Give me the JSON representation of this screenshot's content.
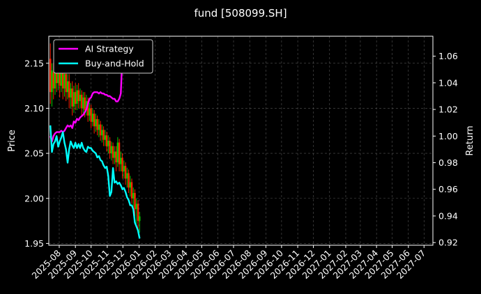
{
  "chart_data": {
    "type": "line",
    "title": "fund [508099.SH]",
    "xlabel": "",
    "ylabel": "Price",
    "y2label": "Return",
    "grid": true,
    "legend_placement": "top-left",
    "x_tick_labels": [
      "2025-08",
      "2025-09",
      "2025-10",
      "2025-11",
      "2025-12",
      "2026-01",
      "2026-02",
      "2026-03",
      "2026-04",
      "2026-05",
      "2026-06",
      "2026-07",
      "2026-08",
      "2026-09",
      "2026-10",
      "2026-11",
      "2026-12",
      "2027-01",
      "2027-02",
      "2027-03",
      "2027-04",
      "2027-05",
      "2027-06",
      "2027-07"
    ],
    "xlim": [
      "2025-07-12",
      "2027-07-18"
    ],
    "ylim": [
      1.948,
      2.18
    ],
    "y_ticks": [
      "1.95",
      "2.00",
      "2.05",
      "2.10",
      "2.15"
    ],
    "y2lim": [
      0.918,
      1.075
    ],
    "y2_ticks": [
      "0.92",
      "0.94",
      "0.96",
      "0.98",
      "1.00",
      "1.02",
      "1.04",
      "1.06"
    ],
    "candles": [
      {
        "date": "2025-07-15",
        "open": 2.155,
        "close": 2.118,
        "high": 2.172,
        "low": 2.105
      },
      {
        "date": "2025-07-18",
        "open": 2.118,
        "close": 2.142,
        "high": 2.15,
        "low": 2.102
      },
      {
        "date": "2025-07-21",
        "open": 2.14,
        "close": 2.122,
        "high": 2.15,
        "low": 2.11
      },
      {
        "date": "2025-07-24",
        "open": 2.122,
        "close": 2.15,
        "high": 2.16,
        "low": 2.115
      },
      {
        "date": "2025-07-27",
        "open": 2.15,
        "close": 2.128,
        "high": 2.158,
        "low": 2.118
      },
      {
        "date": "2025-07-30",
        "open": 2.128,
        "close": 2.14,
        "high": 2.148,
        "low": 2.12
      },
      {
        "date": "2025-08-02",
        "open": 2.14,
        "close": 2.125,
        "high": 2.15,
        "low": 2.112
      },
      {
        "date": "2025-08-05",
        "open": 2.125,
        "close": 2.145,
        "high": 2.152,
        "low": 2.118
      },
      {
        "date": "2025-08-08",
        "open": 2.145,
        "close": 2.122,
        "high": 2.155,
        "low": 2.11
      },
      {
        "date": "2025-08-11",
        "open": 2.122,
        "close": 2.138,
        "high": 2.142,
        "low": 2.113
      },
      {
        "date": "2025-08-14",
        "open": 2.138,
        "close": 2.118,
        "high": 2.145,
        "low": 2.108
      },
      {
        "date": "2025-08-17",
        "open": 2.118,
        "close": 2.13,
        "high": 2.138,
        "low": 2.11
      },
      {
        "date": "2025-08-20",
        "open": 2.13,
        "close": 2.112,
        "high": 2.138,
        "low": 2.1
      },
      {
        "date": "2025-08-23",
        "open": 2.112,
        "close": 2.122,
        "high": 2.128,
        "low": 2.1
      },
      {
        "date": "2025-08-26",
        "open": 2.122,
        "close": 2.102,
        "high": 2.13,
        "low": 2.092
      },
      {
        "date": "2025-08-29",
        "open": 2.102,
        "close": 2.118,
        "high": 2.125,
        "low": 2.095
      },
      {
        "date": "2025-09-01",
        "open": 2.118,
        "close": 2.105,
        "high": 2.128,
        "low": 2.098
      },
      {
        "date": "2025-09-04",
        "open": 2.105,
        "close": 2.12,
        "high": 2.126,
        "low": 2.098
      },
      {
        "date": "2025-09-07",
        "open": 2.12,
        "close": 2.108,
        "high": 2.128,
        "low": 2.1
      },
      {
        "date": "2025-09-10",
        "open": 2.108,
        "close": 2.115,
        "high": 2.122,
        "low": 2.1
      },
      {
        "date": "2025-09-13",
        "open": 2.115,
        "close": 2.1,
        "high": 2.12,
        "low": 2.092
      },
      {
        "date": "2025-09-16",
        "open": 2.1,
        "close": 2.112,
        "high": 2.118,
        "low": 2.095
      },
      {
        "date": "2025-09-19",
        "open": 2.112,
        "close": 2.098,
        "high": 2.118,
        "low": 2.09
      },
      {
        "date": "2025-09-22",
        "open": 2.098,
        "close": 2.108,
        "high": 2.115,
        "low": 2.092
      },
      {
        "date": "2025-09-25",
        "open": 2.108,
        "close": 2.092,
        "high": 2.112,
        "low": 2.085
      },
      {
        "date": "2025-09-28",
        "open": 2.092,
        "close": 2.1,
        "high": 2.106,
        "low": 2.086
      },
      {
        "date": "2025-10-01",
        "open": 2.1,
        "close": 2.085,
        "high": 2.104,
        "low": 2.078
      },
      {
        "date": "2025-10-04",
        "open": 2.085,
        "close": 2.094,
        "high": 2.1,
        "low": 2.08
      },
      {
        "date": "2025-10-07",
        "open": 2.094,
        "close": 2.08,
        "high": 2.098,
        "low": 2.072
      },
      {
        "date": "2025-10-10",
        "open": 2.08,
        "close": 2.088,
        "high": 2.094,
        "low": 2.074
      },
      {
        "date": "2025-10-13",
        "open": 2.088,
        "close": 2.076,
        "high": 2.092,
        "low": 2.07
      },
      {
        "date": "2025-10-16",
        "open": 2.076,
        "close": 2.082,
        "high": 2.088,
        "low": 2.068
      },
      {
        "date": "2025-10-19",
        "open": 2.082,
        "close": 2.07,
        "high": 2.086,
        "low": 2.064
      },
      {
        "date": "2025-10-22",
        "open": 2.07,
        "close": 2.076,
        "high": 2.082,
        "low": 2.062
      },
      {
        "date": "2025-10-25",
        "open": 2.076,
        "close": 2.065,
        "high": 2.08,
        "low": 2.058
      },
      {
        "date": "2025-10-28",
        "open": 2.065,
        "close": 2.07,
        "high": 2.076,
        "low": 2.058
      },
      {
        "date": "2025-10-31",
        "open": 2.07,
        "close": 2.058,
        "high": 2.074,
        "low": 2.052
      },
      {
        "date": "2025-11-03",
        "open": 2.058,
        "close": 2.064,
        "high": 2.07,
        "low": 2.05
      },
      {
        "date": "2025-11-06",
        "open": 2.064,
        "close": 2.05,
        "high": 2.068,
        "low": 2.044
      },
      {
        "date": "2025-11-09",
        "open": 2.05,
        "close": 2.058,
        "high": 2.063,
        "low": 2.042
      },
      {
        "date": "2025-11-12",
        "open": 2.058,
        "close": 2.045,
        "high": 2.062,
        "low": 2.038
      },
      {
        "date": "2025-11-15",
        "open": 2.045,
        "close": 2.052,
        "high": 2.058,
        "low": 2.038
      },
      {
        "date": "2025-11-18",
        "open": 2.052,
        "close": 2.04,
        "high": 2.058,
        "low": 2.03
      },
      {
        "date": "2025-11-21",
        "open": 2.04,
        "close": 2.062,
        "high": 2.068,
        "low": 2.035
      },
      {
        "date": "2025-11-24",
        "open": 2.062,
        "close": 2.038,
        "high": 2.066,
        "low": 2.03
      },
      {
        "date": "2025-11-27",
        "open": 2.038,
        "close": 2.045,
        "high": 2.052,
        "low": 2.03
      },
      {
        "date": "2025-11-30",
        "open": 2.045,
        "close": 2.03,
        "high": 2.05,
        "low": 2.022
      },
      {
        "date": "2025-12-03",
        "open": 2.03,
        "close": 2.036,
        "high": 2.042,
        "low": 2.022
      },
      {
        "date": "2025-12-06",
        "open": 2.036,
        "close": 2.022,
        "high": 2.04,
        "low": 2.015
      },
      {
        "date": "2025-12-09",
        "open": 2.022,
        "close": 2.028,
        "high": 2.034,
        "low": 2.012
      },
      {
        "date": "2025-12-12",
        "open": 2.028,
        "close": 2.012,
        "high": 2.032,
        "low": 2.006
      },
      {
        "date": "2025-12-15",
        "open": 2.012,
        "close": 2.018,
        "high": 2.025,
        "low": 2.002
      },
      {
        "date": "2025-12-18",
        "open": 2.018,
        "close": 2.0,
        "high": 2.022,
        "low": 1.994
      },
      {
        "date": "2025-12-21",
        "open": 2.0,
        "close": 2.006,
        "high": 2.012,
        "low": 1.99
      },
      {
        "date": "2025-12-24",
        "open": 2.006,
        "close": 1.988,
        "high": 2.01,
        "low": 1.98
      },
      {
        "date": "2025-12-27",
        "open": 1.988,
        "close": 1.994,
        "high": 2.0,
        "low": 1.972
      },
      {
        "date": "2025-12-30",
        "open": 1.994,
        "close": 1.975,
        "high": 1.998,
        "low": 1.965
      },
      {
        "date": "2026-01-02",
        "open": 1.975,
        "close": 1.98,
        "high": 1.985,
        "low": 1.962
      }
    ],
    "series": [
      {
        "name": "AI Strategy",
        "color": "#ff00ff",
        "points": [
          [
            "2025-07-15",
            1.0
          ],
          [
            "2025-07-18",
            0.996
          ],
          [
            "2025-07-21",
            1.0
          ],
          [
            "2025-07-24",
            1.002
          ],
          [
            "2025-07-27",
            1.003
          ],
          [
            "2025-07-30",
            1.003
          ],
          [
            "2025-08-02",
            1.003
          ],
          [
            "2025-08-05",
            1.004
          ],
          [
            "2025-08-08",
            1.003
          ],
          [
            "2025-08-11",
            1.004
          ],
          [
            "2025-08-14",
            1.006
          ],
          [
            "2025-08-17",
            1.008
          ],
          [
            "2025-08-20",
            1.007
          ],
          [
            "2025-08-23",
            1.008
          ],
          [
            "2025-08-26",
            1.006
          ],
          [
            "2025-08-29",
            1.011
          ],
          [
            "2025-09-01",
            1.01
          ],
          [
            "2025-09-04",
            1.013
          ],
          [
            "2025-09-07",
            1.012
          ],
          [
            "2025-09-10",
            1.014
          ],
          [
            "2025-09-13",
            1.015
          ],
          [
            "2025-09-16",
            1.016
          ],
          [
            "2025-09-19",
            1.018
          ],
          [
            "2025-09-22",
            1.02
          ],
          [
            "2025-09-25",
            1.024
          ],
          [
            "2025-09-28",
            1.028
          ],
          [
            "2025-10-01",
            1.029
          ],
          [
            "2025-10-04",
            1.032
          ],
          [
            "2025-10-07",
            1.033
          ],
          [
            "2025-10-10",
            1.033
          ],
          [
            "2025-10-13",
            1.033
          ],
          [
            "2025-10-16",
            1.032
          ],
          [
            "2025-10-19",
            1.033
          ],
          [
            "2025-10-22",
            1.032
          ],
          [
            "2025-10-25",
            1.032
          ],
          [
            "2025-10-28",
            1.031
          ],
          [
            "2025-10-31",
            1.031
          ],
          [
            "2025-11-03",
            1.03
          ],
          [
            "2025-11-06",
            1.03
          ],
          [
            "2025-11-09",
            1.029
          ],
          [
            "2025-11-12",
            1.028
          ],
          [
            "2025-11-15",
            1.028
          ],
          [
            "2025-11-18",
            1.026
          ],
          [
            "2025-11-21",
            1.026
          ],
          [
            "2025-11-24",
            1.028
          ],
          [
            "2025-11-27",
            1.032
          ],
          [
            "2025-11-30",
            1.061
          ],
          [
            "2025-12-03",
            1.062
          ]
        ]
      },
      {
        "name": "Buy-and-Hold",
        "color": "#00ffff",
        "points": [
          [
            "2025-07-15",
            1.008
          ],
          [
            "2025-07-18",
            0.988
          ],
          [
            "2025-07-21",
            0.994
          ],
          [
            "2025-07-24",
            0.996
          ],
          [
            "2025-07-27",
            1.0
          ],
          [
            "2025-07-30",
            0.992
          ],
          [
            "2025-08-02",
            0.996
          ],
          [
            "2025-08-05",
            0.999
          ],
          [
            "2025-08-08",
            1.003
          ],
          [
            "2025-08-11",
            0.995
          ],
          [
            "2025-08-14",
            0.99
          ],
          [
            "2025-08-17",
            0.98
          ],
          [
            "2025-08-20",
            0.99
          ],
          [
            "2025-08-23",
            0.996
          ],
          [
            "2025-08-26",
            0.993
          ],
          [
            "2025-08-29",
            0.991
          ],
          [
            "2025-09-01",
            0.995
          ],
          [
            "2025-09-04",
            0.991
          ],
          [
            "2025-09-07",
            0.994
          ],
          [
            "2025-09-10",
            0.991
          ],
          [
            "2025-09-13",
            0.995
          ],
          [
            "2025-09-16",
            0.991
          ],
          [
            "2025-09-19",
            0.989
          ],
          [
            "2025-09-22",
            0.988
          ],
          [
            "2025-09-25",
            0.992
          ],
          [
            "2025-09-28",
            0.991
          ],
          [
            "2025-10-01",
            0.991
          ],
          [
            "2025-10-04",
            0.989
          ],
          [
            "2025-10-07",
            0.988
          ],
          [
            "2025-10-10",
            0.987
          ],
          [
            "2025-10-13",
            0.984
          ],
          [
            "2025-10-16",
            0.985
          ],
          [
            "2025-10-19",
            0.982
          ],
          [
            "2025-10-22",
            0.981
          ],
          [
            "2025-10-25",
            0.978
          ],
          [
            "2025-10-28",
            0.976
          ],
          [
            "2025-10-31",
            0.977
          ],
          [
            "2025-11-03",
            0.97
          ],
          [
            "2025-11-06",
            0.955
          ],
          [
            "2025-11-09",
            0.958
          ],
          [
            "2025-11-12",
            0.976
          ],
          [
            "2025-11-15",
            0.965
          ],
          [
            "2025-11-18",
            0.966
          ],
          [
            "2025-11-21",
            0.964
          ],
          [
            "2025-11-24",
            0.965
          ],
          [
            "2025-11-27",
            0.963
          ],
          [
            "2025-11-30",
            0.96
          ],
          [
            "2025-12-03",
            0.961
          ],
          [
            "2025-12-06",
            0.958
          ],
          [
            "2025-12-09",
            0.954
          ],
          [
            "2025-12-12",
            0.952
          ],
          [
            "2025-12-15",
            0.948
          ],
          [
            "2025-12-18",
            0.948
          ],
          [
            "2025-12-21",
            0.945
          ],
          [
            "2025-12-24",
            0.935
          ],
          [
            "2025-12-27",
            0.932
          ],
          [
            "2025-12-30",
            0.929
          ],
          [
            "2026-01-02",
            0.923
          ]
        ]
      }
    ],
    "candle_colors": {
      "up": "#00cc00",
      "down": "#ff2200"
    },
    "grid_color": "#555555"
  }
}
